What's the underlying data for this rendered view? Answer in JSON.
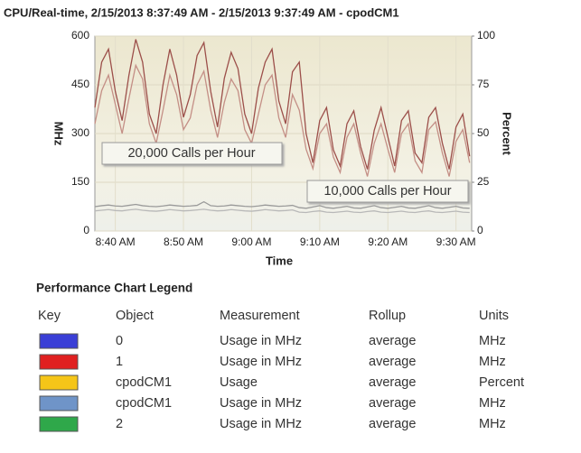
{
  "chart_data": {
    "type": "line",
    "title": "CPU/Real-time, 2/15/2013 8:37:49 AM - 2/15/2013 9:37:49 AM - cpodCM1",
    "x_label": "Time",
    "y_label": "MHz",
    "y2_label": "Percent",
    "annotations": [
      "20,000 Calls per Hour",
      "10,000 Calls per Hour"
    ],
    "x": [
      37,
      38,
      39,
      40,
      41,
      42,
      43,
      44,
      45,
      46,
      47,
      48,
      49,
      50,
      51,
      52,
      53,
      54,
      55,
      56,
      57,
      58,
      59,
      60,
      61,
      62,
      63,
      64,
      65,
      66,
      67,
      68,
      69,
      70,
      71,
      72,
      73,
      74,
      75,
      76,
      77,
      78,
      79,
      80,
      81,
      82,
      83,
      84,
      85,
      86,
      87,
      88,
      89,
      90,
      91,
      92
    ],
    "xlim": [
      37,
      92.3
    ],
    "xticks": [
      {
        "value": 40,
        "label": "8:40 AM"
      },
      {
        "value": 50,
        "label": "8:50 AM"
      },
      {
        "value": 60,
        "label": "9:00 AM"
      },
      {
        "value": 70,
        "label": "9:10 AM"
      },
      {
        "value": 80,
        "label": "9:20 AM"
      },
      {
        "value": 90,
        "label": "9:30 AM"
      }
    ],
    "ylim": [
      0,
      600
    ],
    "yticks": [
      0,
      150,
      300,
      450,
      600
    ],
    "y2lim": [
      0,
      100
    ],
    "y2ticks": [
      0,
      25,
      50,
      75,
      100
    ],
    "grid": true,
    "series": [
      {
        "color": "#9c4f4a",
        "values": [
          380,
          520,
          560,
          430,
          340,
          480,
          590,
          520,
          360,
          300,
          450,
          560,
          480,
          350,
          420,
          540,
          580,
          430,
          320,
          470,
          550,
          500,
          360,
          300,
          440,
          520,
          560,
          400,
          330,
          490,
          520,
          300,
          210,
          340,
          380,
          250,
          200,
          330,
          370,
          260,
          190,
          310,
          380,
          290,
          200,
          340,
          370,
          240,
          210,
          350,
          380,
          270,
          190,
          320,
          360,
          230
        ]
      },
      {
        "color": "#c48f86",
        "axis": "y2",
        "values": [
          55,
          72,
          80,
          65,
          50,
          68,
          85,
          78,
          55,
          45,
          62,
          80,
          70,
          52,
          58,
          75,
          82,
          62,
          48,
          66,
          78,
          72,
          52,
          45,
          60,
          75,
          80,
          58,
          48,
          70,
          62,
          42,
          32,
          50,
          55,
          38,
          30,
          48,
          55,
          40,
          28,
          45,
          55,
          42,
          30,
          50,
          55,
          36,
          30,
          52,
          56,
          40,
          28,
          46,
          52,
          35
        ]
      },
      {
        "color": "#9a9a9a",
        "values": [
          75,
          78,
          80,
          77,
          76,
          79,
          82,
          78,
          76,
          75,
          77,
          80,
          78,
          76,
          77,
          79,
          90,
          78,
          76,
          77,
          80,
          78,
          76,
          75,
          77,
          80,
          78,
          76,
          77,
          79,
          72,
          70,
          74,
          78,
          72,
          70,
          73,
          76,
          71,
          70,
          74,
          78,
          72,
          70,
          73,
          76,
          71,
          70,
          74,
          78,
          72,
          70,
          73,
          76,
          71,
          70
        ]
      },
      {
        "color": "#b8b8b8",
        "values": [
          62,
          64,
          66,
          63,
          62,
          65,
          67,
          64,
          62,
          61,
          63,
          66,
          64,
          62,
          63,
          65,
          67,
          64,
          62,
          63,
          66,
          64,
          62,
          61,
          63,
          66,
          64,
          62,
          63,
          65,
          58,
          57,
          60,
          62,
          58,
          57,
          59,
          61,
          58,
          57,
          60,
          62,
          58,
          57,
          59,
          61,
          58,
          57,
          60,
          62,
          58,
          57,
          59,
          61,
          58,
          57
        ]
      }
    ]
  },
  "legend_table": {
    "title": "Performance Chart Legend",
    "header": [
      "Key",
      "Object",
      "Measurement",
      "Rollup",
      "Units"
    ],
    "rows": [
      {
        "color": "#3a3fd6",
        "cells": [
          "0",
          "Usage in MHz",
          "average",
          "MHz"
        ]
      },
      {
        "color": "#e02020",
        "cells": [
          "1",
          "Usage in MHz",
          "average",
          "MHz"
        ]
      },
      {
        "color": "#f5c518",
        "cells": [
          "cpodCM1",
          "Usage",
          "average",
          "Percent"
        ]
      },
      {
        "color": "#6f94c8",
        "cells": [
          "cpodCM1",
          "Usage in MHz",
          "average",
          "MHz"
        ]
      },
      {
        "color": "#2fa84a",
        "cells": [
          "2",
          "Usage in MHz",
          "average",
          "MHz"
        ]
      }
    ]
  }
}
